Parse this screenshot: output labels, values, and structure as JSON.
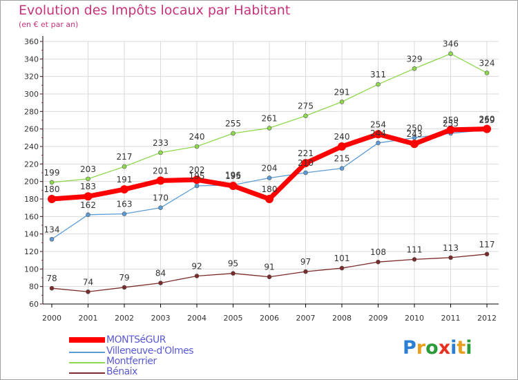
{
  "colors": {
    "title": "#c8327a",
    "legend_text": "#5a5ad2",
    "axis": "#000000",
    "tick_text": "#333333",
    "grid": "#d9d9d9",
    "label_text": "#333333"
  },
  "chart_data": {
    "type": "line",
    "title": "Evolution des Impôts locaux par Habitant",
    "subtitle": "(en € et par an)",
    "xlabel": "",
    "ylabel": "",
    "x": [
      "2000",
      "2001",
      "2002",
      "2003",
      "2004",
      "2005",
      "2006",
      "2007",
      "2008",
      "2009",
      "2010",
      "2011",
      "2012"
    ],
    "ylim": [
      60,
      360
    ],
    "yticks": [
      60,
      80,
      100,
      120,
      140,
      160,
      180,
      200,
      220,
      240,
      260,
      280,
      300,
      320,
      340,
      360
    ],
    "grid": true,
    "legend_position": "bottom-left",
    "series": [
      {
        "name": "Montferrier",
        "color": "#8ed84e",
        "values": [
          199,
          203,
          217,
          233,
          240,
          255,
          261,
          275,
          291,
          311,
          329,
          346,
          324
        ]
      },
      {
        "name": "Villeneuve-d'Olmes",
        "color": "#5b9bd5",
        "values": [
          134,
          162,
          163,
          170,
          195,
          196,
          204,
          210,
          215,
          244,
          250,
          255,
          259
        ]
      },
      {
        "name": "Bénaix",
        "color": "#7a2a2a",
        "values": [
          78,
          74,
          79,
          84,
          92,
          95,
          91,
          97,
          101,
          108,
          111,
          113,
          117
        ]
      },
      {
        "name": "MONTSéGUR",
        "color": "#ff0000",
        "values": [
          180,
          183,
          191,
          201,
          202,
          195,
          180,
          221,
          240,
          254,
          243,
          259,
          260
        ]
      }
    ],
    "legend_order": [
      "MONTSéGUR",
      "Villeneuve-d'Olmes",
      "Montferrier",
      "Bénaix"
    ]
  },
  "logo": {
    "letters": [
      "P",
      "r",
      "o",
      "x",
      "i",
      "t",
      "i"
    ],
    "colors": [
      "#2a7fd4",
      "#e8a020",
      "#2a9a3a",
      "#e83020",
      "#2a7fd4",
      "#e8a020",
      "#2a9a3a"
    ]
  }
}
